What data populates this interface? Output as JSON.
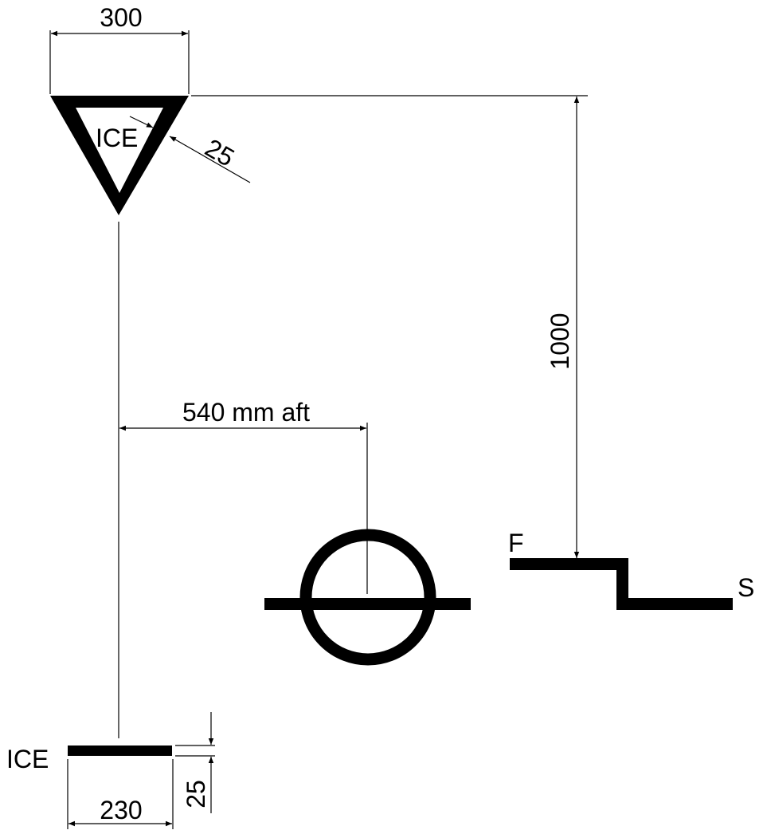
{
  "diagram": {
    "triangle_mark": {
      "label": "ICE",
      "width_dim": "300",
      "stroke_dim": "25"
    },
    "height_dim": "1000",
    "offset_dim": "540 mm aft",
    "draft_line": {
      "fore_label": "F",
      "aft_label": "S"
    },
    "ice_line": {
      "label": "ICE",
      "length_dim": "230",
      "thickness_dim": "25"
    }
  }
}
